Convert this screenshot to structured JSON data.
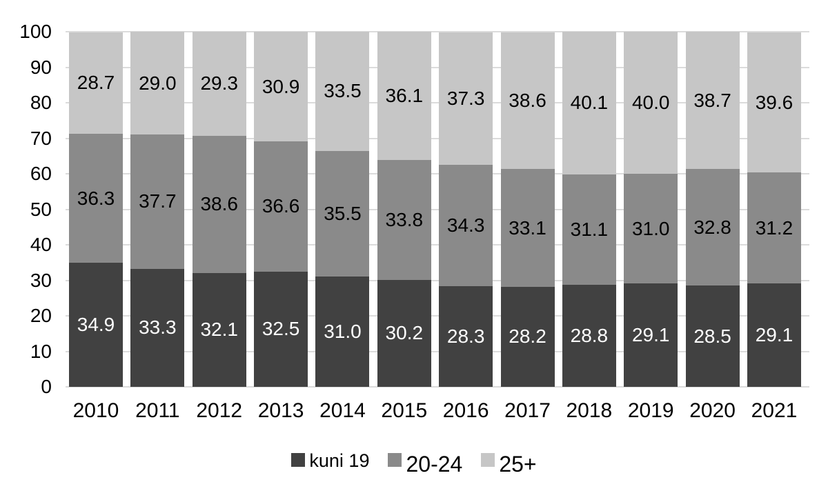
{
  "chart_data": {
    "type": "bar",
    "stacked": true,
    "title": "",
    "categories": [
      "2010",
      "2011",
      "2012",
      "2013",
      "2014",
      "2015",
      "2016",
      "2017",
      "2018",
      "2019",
      "2020",
      "2021"
    ],
    "series": [
      {
        "name": "kuni 19",
        "color": "#414141",
        "label_color": "#ffffff",
        "values": [
          34.9,
          33.3,
          32.1,
          32.5,
          31.0,
          30.2,
          28.3,
          28.2,
          28.8,
          29.1,
          28.5,
          29.1
        ]
      },
      {
        "name": "20-24",
        "color": "#8a8a8a",
        "label_color": "#000000",
        "values": [
          36.3,
          37.7,
          38.6,
          36.6,
          35.5,
          33.8,
          34.3,
          33.1,
          31.1,
          31.0,
          32.8,
          31.2
        ]
      },
      {
        "name": "25+",
        "color": "#c6c6c6",
        "label_color": "#000000",
        "values": [
          28.7,
          29.0,
          29.3,
          30.9,
          33.5,
          36.1,
          37.3,
          38.6,
          40.1,
          40.0,
          38.7,
          39.6
        ]
      }
    ],
    "y_axis": {
      "min": 0,
      "max": 100,
      "step": 10,
      "ticks": [
        0,
        10,
        20,
        30,
        40,
        50,
        60,
        70,
        80,
        90,
        100
      ]
    },
    "value_decimals": 1,
    "grid": true,
    "legend_position": "bottom",
    "colors": {
      "background": "#ffffff",
      "gridline": "#dbdbdb",
      "axis_text": "#000000"
    }
  }
}
